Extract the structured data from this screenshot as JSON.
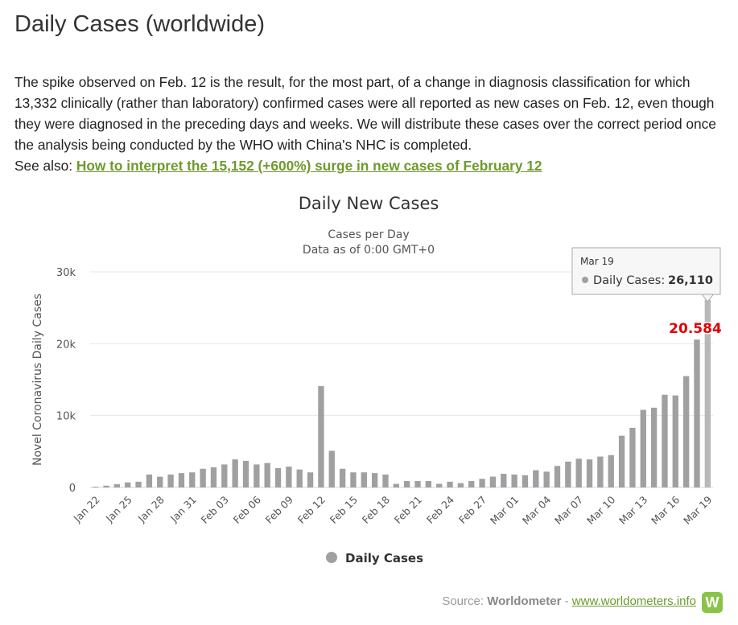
{
  "page": {
    "title": "Daily Cases (worldwide)",
    "intro_text": "The spike observed on Feb. 12 is the result, for the most part, of a change in diagnosis classification for which 13,332 clinically (rather than laboratory) confirmed cases were all reported as new cases on Feb. 12, even though they were diagnosed in the preceding days and weeks. We will distribute these cases over the correct period once the analysis being conducted by the WHO with China's NHC is completed.",
    "see_also_label": "See also:",
    "see_also_link": "How to interpret the 15,152 (+600%) surge in new cases of February 12"
  },
  "tooltip": {
    "date": "Mar 19",
    "series": "Daily Cases:",
    "value": "26,110"
  },
  "annotation": {
    "text": "20.584",
    "color": "#e00000"
  },
  "source": {
    "prefix": "Source:",
    "name": "Worldometer",
    "sep": "-",
    "link": "www.worldometers.info",
    "logo": "W"
  },
  "colors": {
    "bar": "#a0a0a0",
    "bar_highlight": "#b8b8b8",
    "link": "#6d9a2c",
    "grid": "#e6e6e6"
  },
  "chart_data": {
    "type": "bar",
    "title": "Daily New Cases",
    "subtitle_lines": [
      "Cases per Day",
      "Data as of 0:00 GMT+0"
    ],
    "ylabel": "Novel Coronavirus Daily Cases",
    "ylim": [
      0,
      30000
    ],
    "yticks": [
      0,
      10000,
      20000,
      30000
    ],
    "ytick_labels": [
      "0",
      "10k",
      "20k",
      "30k"
    ],
    "legend": [
      "Daily Cases"
    ],
    "legend_placement": "bottom-center",
    "grid": true,
    "categories": [
      "Jan 22",
      "Jan 23",
      "Jan 24",
      "Jan 25",
      "Jan 26",
      "Jan 27",
      "Jan 28",
      "Jan 29",
      "Jan 30",
      "Jan 31",
      "Feb 01",
      "Feb 02",
      "Feb 03",
      "Feb 04",
      "Feb 05",
      "Feb 06",
      "Feb 07",
      "Feb 08",
      "Feb 09",
      "Feb 10",
      "Feb 11",
      "Feb 12",
      "Feb 13",
      "Feb 14",
      "Feb 15",
      "Feb 16",
      "Feb 17",
      "Feb 18",
      "Feb 19",
      "Feb 20",
      "Feb 21",
      "Feb 22",
      "Feb 23",
      "Feb 24",
      "Feb 25",
      "Feb 26",
      "Feb 27",
      "Feb 28",
      "Feb 29",
      "Mar 01",
      "Mar 02",
      "Mar 03",
      "Mar 04",
      "Mar 05",
      "Mar 06",
      "Mar 07",
      "Mar 08",
      "Mar 09",
      "Mar 10",
      "Mar 11",
      "Mar 12",
      "Mar 13",
      "Mar 14",
      "Mar 15",
      "Mar 16",
      "Mar 17",
      "Mar 18",
      "Mar 19"
    ],
    "xtick_labels": [
      "Jan 22",
      "Jan 25",
      "Jan 28",
      "Jan 31",
      "Feb 03",
      "Feb 06",
      "Feb 09",
      "Feb 12",
      "Feb 15",
      "Feb 18",
      "Feb 21",
      "Feb 24",
      "Feb 27",
      "Mar 01",
      "Mar 04",
      "Mar 07",
      "Mar 10",
      "Mar 13",
      "Mar 16",
      "Mar 19"
    ],
    "series": [
      {
        "name": "Daily Cases",
        "values": [
          100,
          250,
          450,
          700,
          800,
          1800,
          1500,
          1800,
          2000,
          2100,
          2600,
          2800,
          3200,
          3900,
          3700,
          3200,
          3400,
          2700,
          2900,
          2500,
          2100,
          14100,
          5100,
          2600,
          2100,
          2100,
          2000,
          1800,
          500,
          900,
          900,
          900,
          500,
          800,
          600,
          900,
          1200,
          1500,
          1900,
          1800,
          1700,
          2400,
          2200,
          3000,
          3600,
          4000,
          3900,
          4300,
          4500,
          7200,
          8300,
          10800,
          11100,
          12900,
          12800,
          15500,
          20584,
          26110
        ]
      }
    ]
  }
}
